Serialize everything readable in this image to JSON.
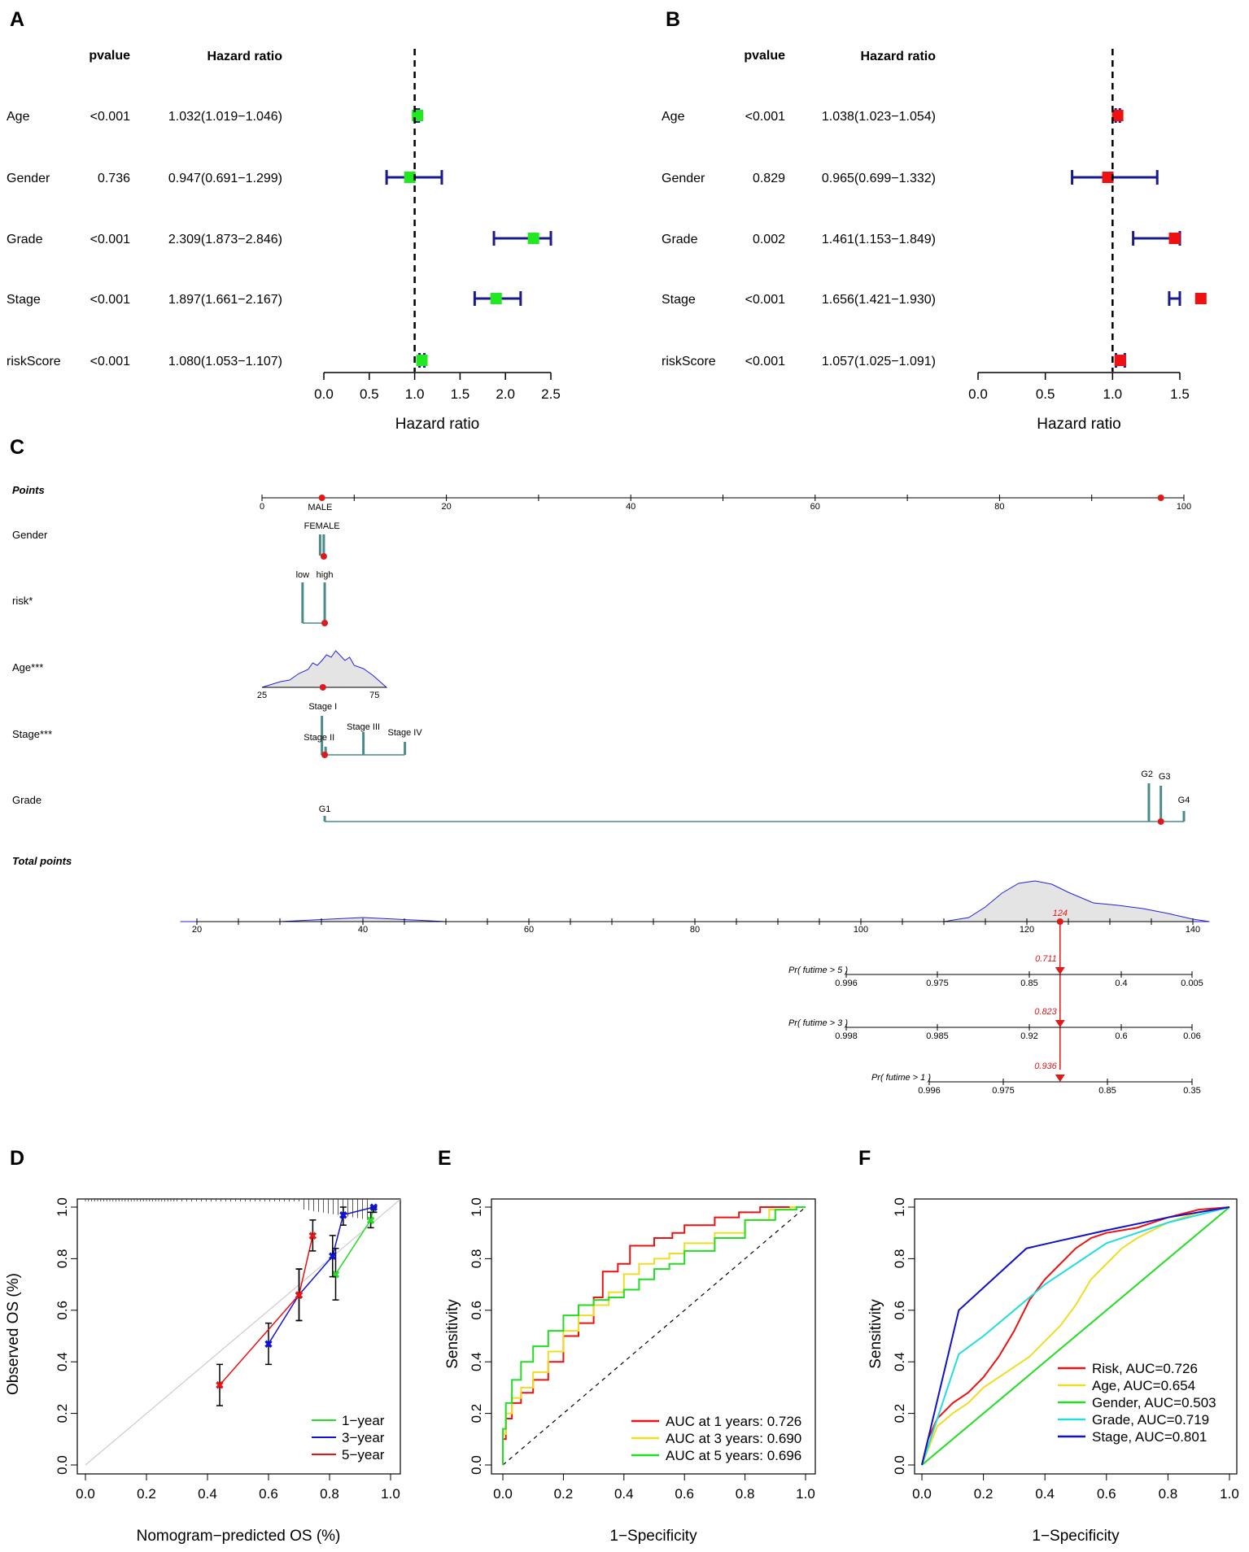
{
  "panels": {
    "A": "A",
    "B": "B",
    "C": "C",
    "D": "D",
    "E": "E",
    "F": "F"
  },
  "chart_data": [
    {
      "panel": "A",
      "type": "forest",
      "header_pvalue": "pvalue",
      "header_hr": "Hazard ratio",
      "xlabel": "Hazard ratio",
      "xlim": [
        0,
        2.5
      ],
      "xticks": [
        "0.0",
        "0.5",
        "1.0",
        "1.5",
        "2.0",
        "2.5"
      ],
      "xtick_values": [
        0,
        0.5,
        1.0,
        1.5,
        2.0,
        2.5
      ],
      "reference": 1.0,
      "marker_color": "#22e822",
      "rows": [
        {
          "label": "Age",
          "pvalue": "<0.001",
          "hr_text": "1.032(1.019−1.046)",
          "hr": 1.032,
          "lo": 1.019,
          "hi": 1.046
        },
        {
          "label": "Gender",
          "pvalue": "0.736",
          "hr_text": "0.947(0.691−1.299)",
          "hr": 0.947,
          "lo": 0.691,
          "hi": 1.299
        },
        {
          "label": "Grade",
          "pvalue": "<0.001",
          "hr_text": "2.309(1.873−2.846)",
          "hr": 2.309,
          "lo": 1.873,
          "hi": 2.846
        },
        {
          "label": "Stage",
          "pvalue": "<0.001",
          "hr_text": "1.897(1.661−2.167)",
          "hr": 1.897,
          "lo": 1.661,
          "hi": 2.167
        },
        {
          "label": "riskScore",
          "pvalue": "<0.001",
          "hr_text": "1.080(1.053−1.107)",
          "hr": 1.08,
          "lo": 1.053,
          "hi": 1.107
        }
      ]
    },
    {
      "panel": "B",
      "type": "forest",
      "header_pvalue": "pvalue",
      "header_hr": "Hazard ratio",
      "xlabel": "Hazard ratio",
      "xlim": [
        0,
        1.5
      ],
      "xticks": [
        "0.0",
        "0.5",
        "1.0",
        "1.5"
      ],
      "xtick_values": [
        0,
        0.5,
        1.0,
        1.5
      ],
      "reference": 1.0,
      "marker_color": "#ee1111",
      "rows": [
        {
          "label": "Age",
          "pvalue": "<0.001",
          "hr_text": "1.038(1.023−1.054)",
          "hr": 1.038,
          "lo": 1.023,
          "hi": 1.054
        },
        {
          "label": "Gender",
          "pvalue": "0.829",
          "hr_text": "0.965(0.699−1.332)",
          "hr": 0.965,
          "lo": 0.699,
          "hi": 1.332
        },
        {
          "label": "Grade",
          "pvalue": "0.002",
          "hr_text": "1.461(1.153−1.849)",
          "hr": 1.461,
          "lo": 1.153,
          "hi": 1.849
        },
        {
          "label": "Stage",
          "pvalue": "<0.001",
          "hr_text": "1.656(1.421−1.930)",
          "hr": 1.656,
          "lo": 1.421,
          "hi": 1.93
        },
        {
          "label": "riskScore",
          "pvalue": "<0.001",
          "hr_text": "1.057(1.025−1.091)",
          "hr": 1.057,
          "lo": 1.025,
          "hi": 1.091
        }
      ]
    },
    {
      "panel": "C",
      "type": "nomogram",
      "rows": {
        "points": "Points",
        "gender": "Gender",
        "risk": "risk*",
        "age": "Age***",
        "stage": "Stage***",
        "grade": "Grade",
        "total": "Total points"
      },
      "points_ticks": [
        "0",
        "20",
        "40",
        "60",
        "80",
        "100"
      ],
      "gender_levels": [
        "MALE",
        "FEMALE"
      ],
      "risk_levels": [
        "low",
        "high"
      ],
      "age_ticks": [
        "25",
        "75"
      ],
      "stage_levels": [
        "Stage I",
        "Stage II",
        "Stage III",
        "Stage IV"
      ],
      "grade_levels": [
        "G1",
        "G2",
        "G3",
        "G4"
      ],
      "total_ticks": [
        "20",
        "40",
        "60",
        "80",
        "100",
        "120",
        "140"
      ],
      "total_value": "124",
      "survival": [
        {
          "label": "Pr( futime > 5 )",
          "ticks": [
            "0.996",
            "0.975",
            "0.85",
            "0.4",
            "0.005"
          ],
          "value": "0.711"
        },
        {
          "label": "Pr( futime > 3 )",
          "ticks": [
            "0.998",
            "0.985",
            "0.92",
            "0.6",
            "0.06"
          ],
          "value": "0.823"
        },
        {
          "label": "Pr( futime > 1 )",
          "ticks": [
            "0.996",
            "0.975",
            "0.85",
            "0.35"
          ],
          "value": "0.936"
        }
      ]
    },
    {
      "panel": "D",
      "type": "calibration",
      "xlabel": "Nomogram−predicted OS (%)",
      "ylabel": "Observed OS (%)",
      "xlim": [
        0,
        1
      ],
      "ylim": [
        0,
        1
      ],
      "ticks": [
        "0.0",
        "0.2",
        "0.4",
        "0.6",
        "0.8",
        "1.0"
      ],
      "series": [
        {
          "name": "1−year",
          "color": "#22dd22",
          "points": [
            [
              0.82,
              0.74
            ],
            [
              0.935,
              0.95
            ],
            [
              0.945,
              1.0
            ]
          ],
          "err": [
            0.1,
            0.03,
            0.02
          ]
        },
        {
          "name": "3−year",
          "color": "#1111dd",
          "points": [
            [
              0.6,
              0.47
            ],
            [
              0.7,
              0.66
            ],
            [
              0.81,
              0.81
            ],
            [
              0.845,
              0.97
            ],
            [
              0.945,
              1.0
            ]
          ],
          "err": [
            0.08,
            0.1,
            0.08,
            0.04,
            0.02
          ]
        },
        {
          "name": "5−year",
          "color": "#ee1111",
          "points": [
            [
              0.44,
              0.31
            ],
            [
              0.7,
              0.66
            ],
            [
              0.745,
              0.89
            ]
          ],
          "err": [
            0.08,
            0.1,
            0.06
          ]
        }
      ]
    },
    {
      "panel": "E",
      "type": "line",
      "subtype": "roc",
      "xlabel": "1−Specificity",
      "ylabel": "Sensitivity",
      "xlim": [
        0,
        1
      ],
      "ylim": [
        0,
        1
      ],
      "ticks": [
        "0.0",
        "0.2",
        "0.4",
        "0.6",
        "0.8",
        "1.0"
      ],
      "series": [
        {
          "name": "AUC at 1 years: 0.726",
          "color": "#ee1111",
          "points": [
            [
              0,
              0
            ],
            [
              0.01,
              0.1
            ],
            [
              0.03,
              0.18
            ],
            [
              0.06,
              0.24
            ],
            [
              0.1,
              0.28
            ],
            [
              0.15,
              0.33
            ],
            [
              0.2,
              0.4
            ],
            [
              0.25,
              0.5
            ],
            [
              0.3,
              0.55
            ],
            [
              0.33,
              0.65
            ],
            [
              0.38,
              0.75
            ],
            [
              0.42,
              0.78
            ],
            [
              0.5,
              0.85
            ],
            [
              0.56,
              0.88
            ],
            [
              0.6,
              0.9
            ],
            [
              0.7,
              0.93
            ],
            [
              0.78,
              0.96
            ],
            [
              0.85,
              0.98
            ],
            [
              0.9,
              1.0
            ],
            [
              1,
              1
            ]
          ]
        },
        {
          "name": "AUC at 3 years: 0.690",
          "color": "#eedd22",
          "points": [
            [
              0,
              0
            ],
            [
              0.01,
              0.12
            ],
            [
              0.03,
              0.2
            ],
            [
              0.06,
              0.26
            ],
            [
              0.1,
              0.3
            ],
            [
              0.15,
              0.36
            ],
            [
              0.2,
              0.44
            ],
            [
              0.25,
              0.52
            ],
            [
              0.3,
              0.58
            ],
            [
              0.35,
              0.62
            ],
            [
              0.4,
              0.67
            ],
            [
              0.45,
              0.74
            ],
            [
              0.5,
              0.78
            ],
            [
              0.55,
              0.8
            ],
            [
              0.6,
              0.82
            ],
            [
              0.7,
              0.86
            ],
            [
              0.8,
              0.9
            ],
            [
              0.88,
              0.95
            ],
            [
              0.95,
              0.99
            ],
            [
              1,
              1
            ]
          ]
        },
        {
          "name": "AUC at 5 years: 0.696",
          "color": "#22dd22",
          "points": [
            [
              0,
              0
            ],
            [
              0.01,
              0.14
            ],
            [
              0.03,
              0.24
            ],
            [
              0.06,
              0.33
            ],
            [
              0.1,
              0.4
            ],
            [
              0.15,
              0.46
            ],
            [
              0.2,
              0.52
            ],
            [
              0.25,
              0.58
            ],
            [
              0.3,
              0.62
            ],
            [
              0.35,
              0.64
            ],
            [
              0.4,
              0.65
            ],
            [
              0.45,
              0.68
            ],
            [
              0.5,
              0.72
            ],
            [
              0.55,
              0.76
            ],
            [
              0.6,
              0.78
            ],
            [
              0.7,
              0.83
            ],
            [
              0.8,
              0.88
            ],
            [
              0.9,
              0.95
            ],
            [
              0.97,
              0.99
            ],
            [
              1,
              1
            ]
          ]
        }
      ]
    },
    {
      "panel": "F",
      "type": "line",
      "subtype": "roc",
      "xlabel": "1−Specificity",
      "ylabel": "Sensitivity",
      "xlim": [
        0,
        1
      ],
      "ylim": [
        0,
        1
      ],
      "ticks": [
        "0.0",
        "0.2",
        "0.4",
        "0.6",
        "0.8",
        "1.0"
      ],
      "series": [
        {
          "name": "Risk, AUC=0.726",
          "color": "#ee1111",
          "points": [
            [
              0,
              0
            ],
            [
              0.02,
              0.1
            ],
            [
              0.05,
              0.18
            ],
            [
              0.1,
              0.24
            ],
            [
              0.15,
              0.28
            ],
            [
              0.2,
              0.34
            ],
            [
              0.25,
              0.42
            ],
            [
              0.3,
              0.52
            ],
            [
              0.35,
              0.64
            ],
            [
              0.4,
              0.72
            ],
            [
              0.45,
              0.78
            ],
            [
              0.5,
              0.84
            ],
            [
              0.55,
              0.88
            ],
            [
              0.6,
              0.9
            ],
            [
              0.7,
              0.92
            ],
            [
              0.8,
              0.96
            ],
            [
              0.9,
              0.99
            ],
            [
              1,
              1
            ]
          ]
        },
        {
          "name": "Age, AUC=0.654",
          "color": "#eedd22",
          "points": [
            [
              0,
              0
            ],
            [
              0.05,
              0.15
            ],
            [
              0.1,
              0.2
            ],
            [
              0.15,
              0.24
            ],
            [
              0.2,
              0.3
            ],
            [
              0.25,
              0.34
            ],
            [
              0.3,
              0.38
            ],
            [
              0.35,
              0.42
            ],
            [
              0.4,
              0.48
            ],
            [
              0.45,
              0.54
            ],
            [
              0.5,
              0.62
            ],
            [
              0.55,
              0.72
            ],
            [
              0.6,
              0.78
            ],
            [
              0.65,
              0.84
            ],
            [
              0.7,
              0.88
            ],
            [
              0.8,
              0.94
            ],
            [
              0.9,
              0.98
            ],
            [
              1,
              1
            ]
          ]
        },
        {
          "name": "Gender, AUC=0.503",
          "color": "#22dd22",
          "points": [
            [
              0,
              0
            ],
            [
              1,
              1
            ]
          ]
        },
        {
          "name": "Grade, AUC=0.719",
          "color": "#22dddd",
          "points": [
            [
              0,
              0
            ],
            [
              0.12,
              0.43
            ],
            [
              0.2,
              0.5
            ],
            [
              0.3,
              0.6
            ],
            [
              0.4,
              0.7
            ],
            [
              0.5,
              0.78
            ],
            [
              0.6,
              0.86
            ],
            [
              0.7,
              0.9
            ],
            [
              0.8,
              0.94
            ],
            [
              0.9,
              0.97
            ],
            [
              1,
              1
            ]
          ]
        },
        {
          "name": "Stage, AUC=0.801",
          "color": "#1111cc",
          "points": [
            [
              0,
              0
            ],
            [
              0.12,
              0.6
            ],
            [
              0.34,
              0.84
            ],
            [
              0.45,
              0.87
            ],
            [
              0.6,
              0.91
            ],
            [
              0.8,
              0.96
            ],
            [
              1,
              1
            ]
          ]
        }
      ]
    }
  ]
}
